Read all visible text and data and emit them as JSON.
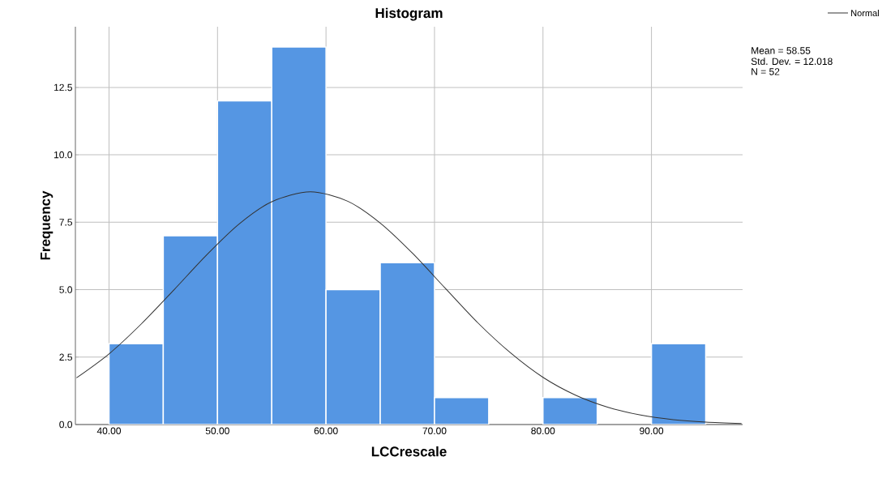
{
  "chart_data": {
    "type": "histogram",
    "title": "Histogram",
    "xlabel": "LCCrescale",
    "ylabel": "Frequency",
    "bins": [
      40,
      45,
      50,
      55,
      60,
      65,
      70,
      75,
      80,
      85,
      90,
      95
    ],
    "series": [
      {
        "color": "#5596e3",
        "values": [
          3,
          7,
          12,
          14,
          5,
          6,
          1,
          0,
          1,
          0,
          3
        ]
      },
      {
        "type": "line",
        "name": "Normal",
        "color": "#333333",
        "x": [
          37,
          40,
          43,
          46,
          49,
          52,
          55,
          58.55,
          62,
          65,
          68,
          71,
          74,
          77,
          80,
          83,
          86,
          89,
          92,
          95,
          98.3
        ],
        "values": [
          1.73,
          2.62,
          3.74,
          5.0,
          6.29,
          7.44,
          8.26,
          8.63,
          8.28,
          7.47,
          6.34,
          5.05,
          3.77,
          2.66,
          1.75,
          1.09,
          0.64,
          0.35,
          0.18,
          0.09,
          0.04
        ]
      }
    ],
    "xlim": [
      36.9,
      98.4
    ],
    "ylim": [
      0,
      14.75
    ],
    "xticks": [
      {
        "value": 40,
        "label": "40.00"
      },
      {
        "value": 50,
        "label": "50.00"
      },
      {
        "value": 60,
        "label": "60.00"
      },
      {
        "value": 70,
        "label": "70.00"
      },
      {
        "value": 80,
        "label": "80.00"
      },
      {
        "value": 90,
        "label": "90.00"
      }
    ],
    "yticks": [
      {
        "value": 0,
        "label": "0.0"
      },
      {
        "value": 2.5,
        "label": "2.5"
      },
      {
        "value": 5,
        "label": "5.0"
      },
      {
        "value": 7.5,
        "label": "7.5"
      },
      {
        "value": 10,
        "label": "10.0"
      },
      {
        "value": 12.5,
        "label": "12.5"
      }
    ],
    "grid": true,
    "legend": "top right",
    "annotations": [
      "Mean = 58.55",
      "Std. Dev. = 12.018",
      "N = 52"
    ]
  }
}
